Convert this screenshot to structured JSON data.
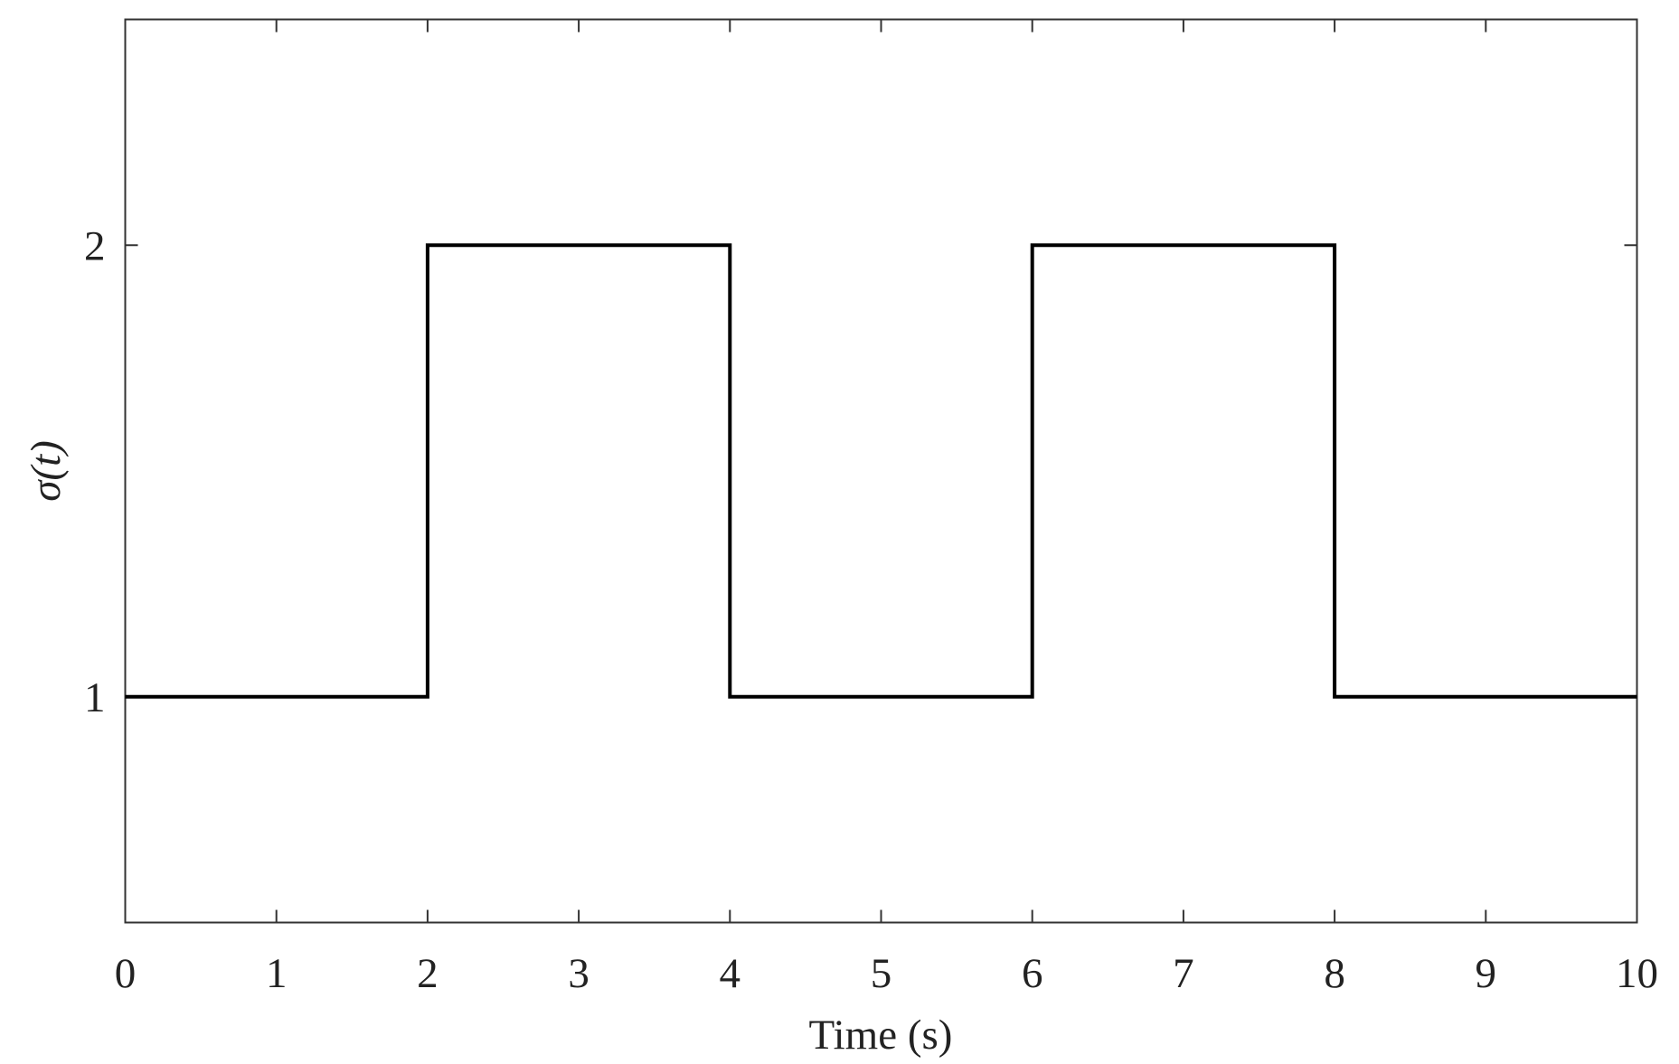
{
  "chart_data": {
    "type": "line",
    "x_label": "Time (s)",
    "y_label": "σ(t)",
    "series": [
      {
        "name": "σ(t)",
        "color": "#000000",
        "x": [
          0,
          2,
          2,
          4,
          4,
          6,
          6,
          8,
          8,
          10
        ],
        "values": [
          1,
          1,
          2,
          2,
          1,
          1,
          2,
          2,
          1,
          1
        ]
      }
    ],
    "xlim": [
      0,
      10
    ],
    "xticks": [
      0,
      1,
      2,
      3,
      4,
      5,
      6,
      7,
      8,
      9,
      10
    ],
    "ylim": [
      0.5,
      2.5
    ],
    "yticks": [
      1,
      2
    ],
    "grid": false
  }
}
